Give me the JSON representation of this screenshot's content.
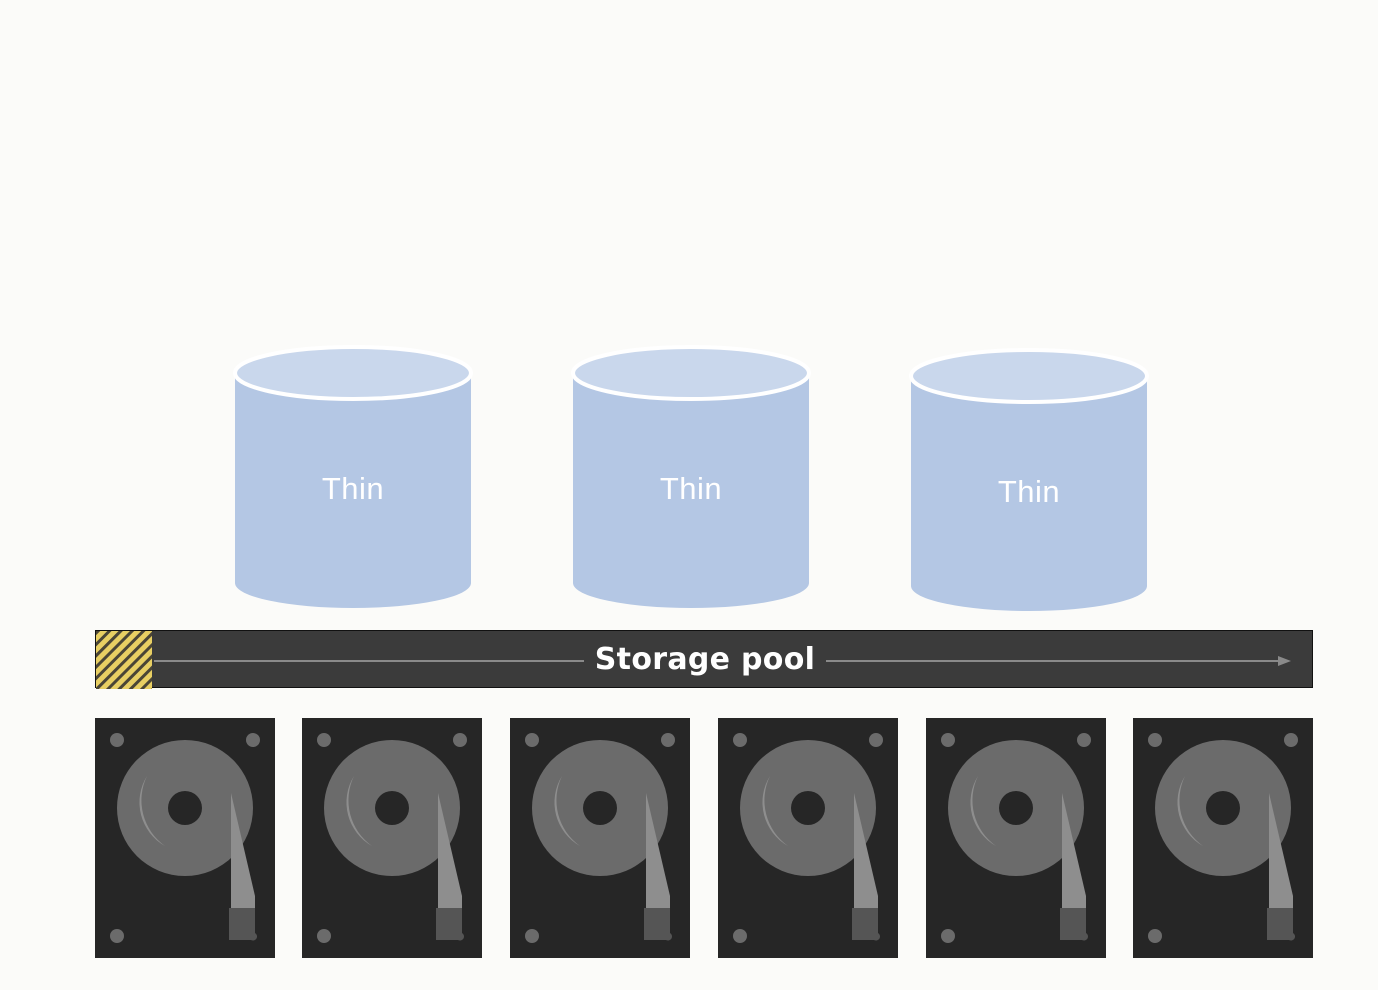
{
  "volumes": [
    {
      "label": "Thin"
    },
    {
      "label": "Thin"
    },
    {
      "label": "Thin"
    }
  ],
  "pool": {
    "label": "Storage pool",
    "used_fraction": 0.046
  },
  "drives": [
    {
      "icon": "hard-drive-icon"
    },
    {
      "icon": "hard-drive-icon"
    },
    {
      "icon": "hard-drive-icon"
    },
    {
      "icon": "hard-drive-icon"
    },
    {
      "icon": "hard-drive-icon"
    },
    {
      "icon": "hard-drive-icon"
    }
  ],
  "colors": {
    "volume_fill": "#b4c7e4",
    "volume_top": "#c9d7ec",
    "pool_fill": "#3b3b3b",
    "pool_used": "#e8cf63",
    "drive_body": "#262626",
    "platter": "#6b6b6b"
  }
}
